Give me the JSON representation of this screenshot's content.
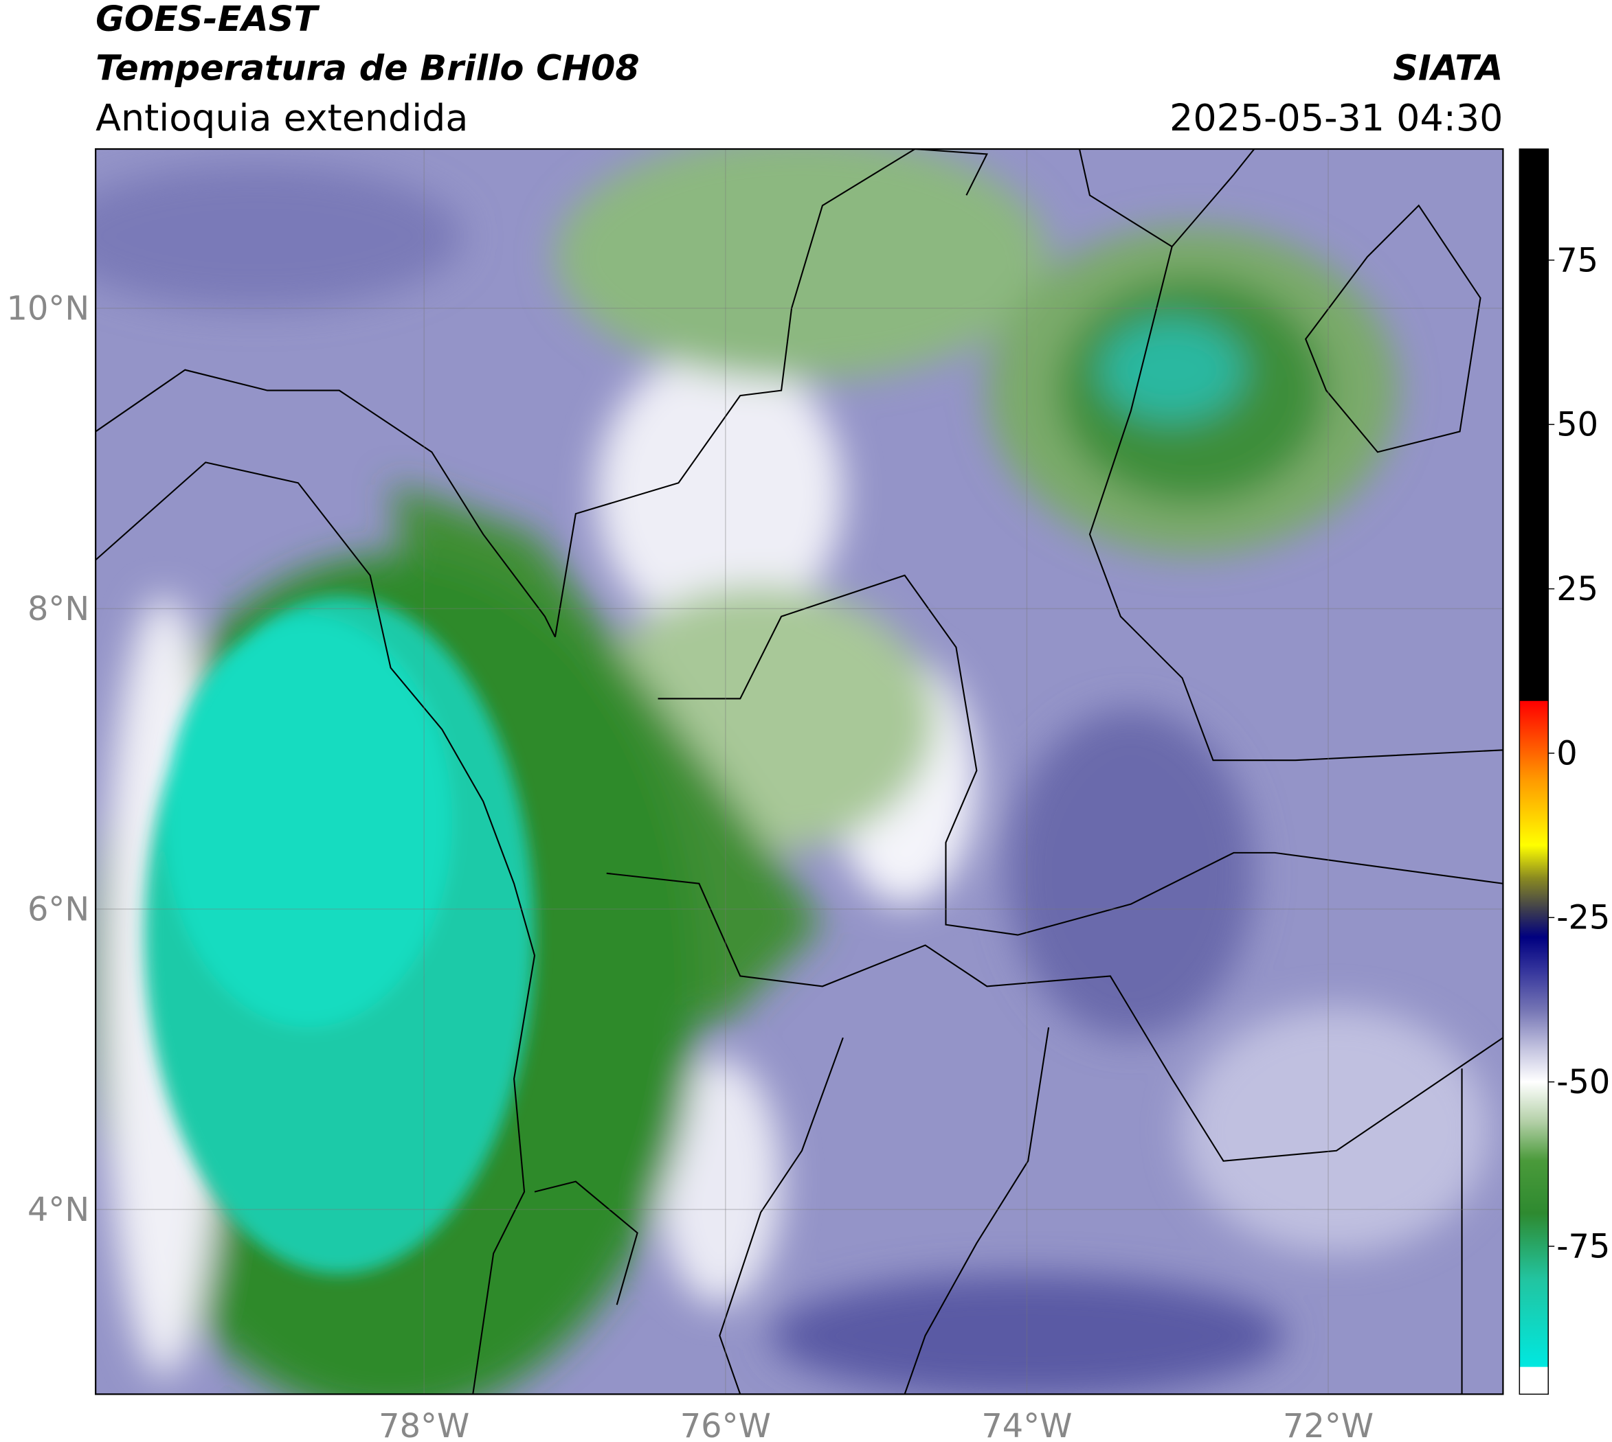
{
  "header": {
    "satellite": "GOES-EAST",
    "product": "Temperatura de Brillo CH08",
    "region": "Antioquia extendida",
    "agency": "SIATA",
    "datetime": "2025-05-31 04:30"
  },
  "map": {
    "lon_range": [
      -80.18,
      -70.84
    ],
    "lat_range": [
      2.77,
      11.06
    ],
    "lat_ticks": [
      {
        "value": 10,
        "label": "10°N"
      },
      {
        "value": 8,
        "label": "8°N"
      },
      {
        "value": 6,
        "label": "6°N"
      },
      {
        "value": 4,
        "label": "4°N"
      }
    ],
    "lon_ticks": [
      {
        "value": -78,
        "label": "78°W"
      },
      {
        "value": -76,
        "label": "76°W"
      },
      {
        "value": -74,
        "label": "74°W"
      },
      {
        "value": -72,
        "label": "72°W"
      }
    ]
  },
  "colorbar": {
    "range": [
      -97.5,
      91.9
    ],
    "ticks": [
      75,
      50,
      25,
      0,
      -25,
      -50,
      -75
    ],
    "stops": [
      {
        "value": -97.5,
        "color": "#ffffff"
      },
      {
        "value": -93.4,
        "color": "#ffffff"
      },
      {
        "value": -93.3,
        "color": "#00e8e0"
      },
      {
        "value": -80,
        "color": "#22c4a0"
      },
      {
        "value": -70,
        "color": "#2e8a30"
      },
      {
        "value": -62,
        "color": "#4a9a3a"
      },
      {
        "value": -56,
        "color": "#b4d0a8"
      },
      {
        "value": -50,
        "color": "#ffffff"
      },
      {
        "value": -45,
        "color": "#c4c4e0"
      },
      {
        "value": -39,
        "color": "#7474b4"
      },
      {
        "value": -33,
        "color": "#34349c"
      },
      {
        "value": -28,
        "color": "#000080"
      },
      {
        "value": -24,
        "color": "#3a3a50"
      },
      {
        "value": -19,
        "color": "#8a8a20"
      },
      {
        "value": -14,
        "color": "#ffff00"
      },
      {
        "value": -4,
        "color": "#ff9900"
      },
      {
        "value": 7.9,
        "color": "#ff0000"
      },
      {
        "value": 8,
        "color": "#000000"
      },
      {
        "value": 91.9,
        "color": "#000000"
      }
    ]
  }
}
